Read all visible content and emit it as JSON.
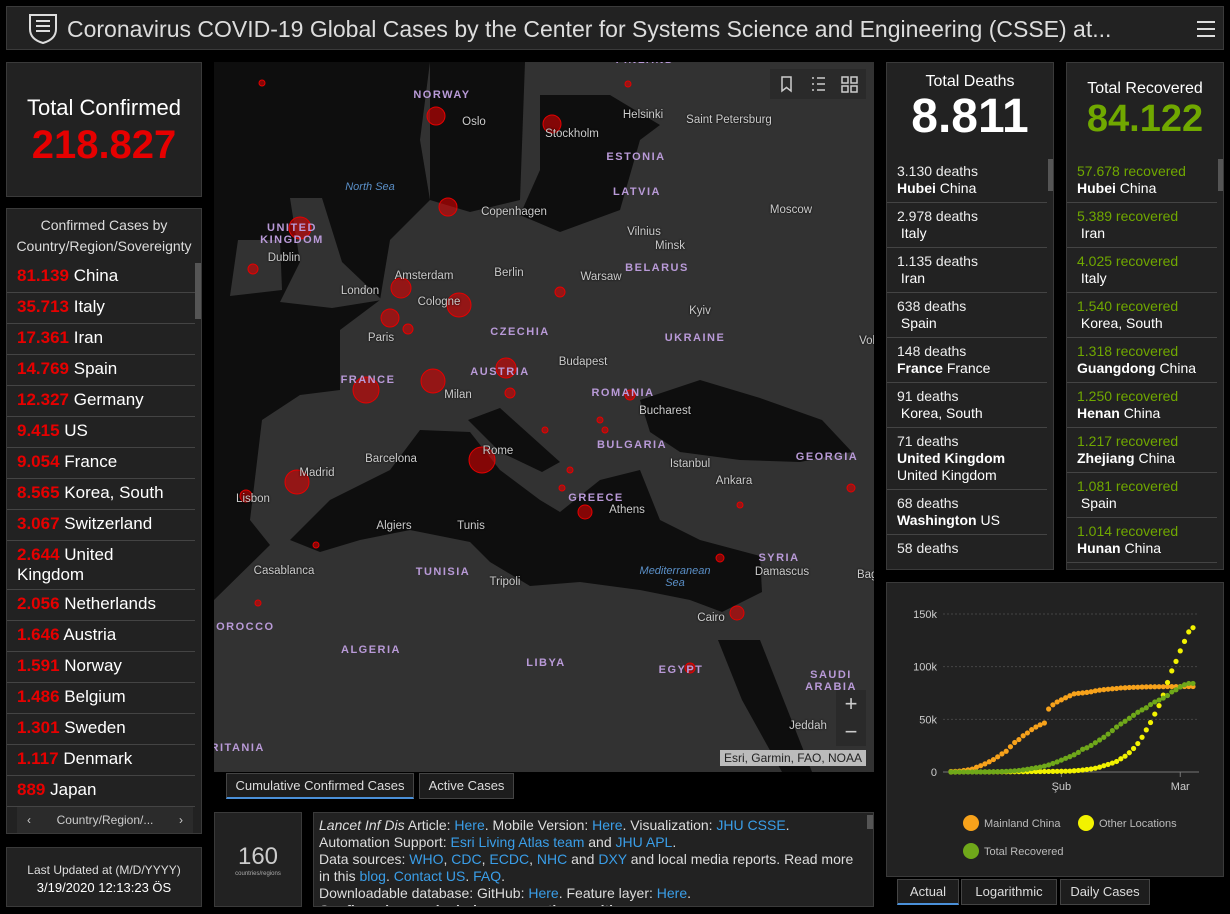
{
  "header": {
    "title": "Coronavirus COVID-19 Global Cases by the Center for Systems Science and Engineering (CSSE) at..."
  },
  "confirmed": {
    "title": "Total Confirmed",
    "value": "218.827"
  },
  "country_list": {
    "title": "Confirmed Cases by Country/Region/Sovereignty",
    "items": [
      {
        "value": "81.139",
        "name": "China"
      },
      {
        "value": "35.713",
        "name": "Italy"
      },
      {
        "value": "17.361",
        "name": "Iran"
      },
      {
        "value": "14.769",
        "name": "Spain"
      },
      {
        "value": "12.327",
        "name": "Germany"
      },
      {
        "value": "9.415",
        "name": "US"
      },
      {
        "value": "9.054",
        "name": "France"
      },
      {
        "value": "8.565",
        "name": "Korea, South"
      },
      {
        "value": "3.067",
        "name": "Switzerland"
      },
      {
        "value": "2.644",
        "name": "United Kingdom"
      },
      {
        "value": "2.056",
        "name": "Netherlands"
      },
      {
        "value": "1.646",
        "name": "Austria"
      },
      {
        "value": "1.591",
        "name": "Norway"
      },
      {
        "value": "1.486",
        "name": "Belgium"
      },
      {
        "value": "1.301",
        "name": "Sweden"
      },
      {
        "value": "1.117",
        "name": "Denmark"
      },
      {
        "value": "889",
        "name": "Japan"
      }
    ],
    "nav": "Country/Region/..."
  },
  "last_updated": {
    "label": "Last Updated at (M/D/YYYY)",
    "value": "3/19/2020 12:13:23 ÖS"
  },
  "map": {
    "labels": [
      "FINLAND",
      "NORWAY",
      "ESTONIA",
      "LATVIA",
      "UNITED KINGDOM",
      "BELARUS",
      "CZECHIA",
      "UKRAINE",
      "FRANCE",
      "AUSTRIA",
      "ROMANIA",
      "BULGARIA",
      "GEORGIA",
      "GREECE",
      "SYRIA",
      "TUNISIA",
      "MOROCCO",
      "ALGERIA",
      "LIBYA",
      "EGYPT",
      "SAUDI ARABIA",
      "MAURITANIA"
    ],
    "cities": [
      "Oslo",
      "Stockholm",
      "Helsinki",
      "Saint Petersburg",
      "Copenhagen",
      "Moscow",
      "Dublin",
      "Vilnius",
      "Minsk",
      "Amsterdam",
      "Berlin",
      "Warsaw",
      "London",
      "Cologne",
      "Kyiv",
      "Paris",
      "Volgograd",
      "Budapest",
      "Milan",
      "Bucharest",
      "Barcelona",
      "Rome",
      "Istanbul",
      "Madrid",
      "Ankara",
      "Lisbon",
      "Athens",
      "Algiers",
      "Tunis",
      "Damascus",
      "Baghdad",
      "Casablanca",
      "Tripoli",
      "Cairo",
      "Jeddah"
    ],
    "seas": [
      "North Sea",
      "Mediterranean Sea"
    ],
    "attribution": "Esri, Garmin, FAO, NOAA",
    "zoom_in": "+",
    "zoom_out": "−",
    "tabs": [
      "Cumulative Confirmed Cases",
      "Active Cases"
    ]
  },
  "count": {
    "value": "160",
    "label": "countries/regions"
  },
  "info": {
    "lines": [
      [
        {
          "text": "Lancet Inf Dis",
          "style": "italic"
        },
        {
          "text": " Article: "
        },
        {
          "text": "Here",
          "style": "link"
        },
        {
          "text": ". Mobile Version: "
        },
        {
          "text": "Here",
          "style": "link"
        },
        {
          "text": ". Visualization: "
        },
        {
          "text": "JHU CSSE",
          "style": "link"
        },
        {
          "text": "."
        }
      ],
      [
        {
          "text": "Automation Support: "
        },
        {
          "text": "Esri Living Atlas team",
          "style": "link"
        },
        {
          "text": " and "
        },
        {
          "text": "JHU APL",
          "style": "link"
        },
        {
          "text": "."
        }
      ],
      [
        {
          "text": "Data sources: "
        },
        {
          "text": "WHO",
          "style": "link"
        },
        {
          "text": ", "
        },
        {
          "text": "CDC",
          "style": "link"
        },
        {
          "text": ", "
        },
        {
          "text": "ECDC",
          "style": "link"
        },
        {
          "text": ", "
        },
        {
          "text": "NHC",
          "style": "link"
        },
        {
          "text": " and "
        },
        {
          "text": "DXY",
          "style": "link"
        },
        {
          "text": " and local media reports. Read more in this "
        },
        {
          "text": "blog",
          "style": "link"
        },
        {
          "text": ". "
        },
        {
          "text": "Contact US",
          "style": "link"
        },
        {
          "text": ". "
        },
        {
          "text": "FAQ",
          "style": "link"
        },
        {
          "text": "."
        }
      ],
      [
        {
          "text": "Downloadable database: GitHub: "
        },
        {
          "text": "Here",
          "style": "link"
        },
        {
          "text": ". Feature layer: "
        },
        {
          "text": "Here",
          "style": "link"
        },
        {
          "text": "."
        }
      ],
      [
        {
          "text": "Confirmed cases include presumptive positive cases",
          "style": "bold"
        }
      ]
    ]
  },
  "deaths": {
    "title": "Total Deaths",
    "value": "8.811",
    "items": [
      {
        "count": "3.130 deaths",
        "place": "Hubei",
        "region": "China"
      },
      {
        "count": "2.978 deaths",
        "region": "Italy"
      },
      {
        "count": "1.135 deaths",
        "region": "Iran"
      },
      {
        "count": "638 deaths",
        "region": "Spain"
      },
      {
        "count": "148 deaths",
        "place": "France",
        "region": "France"
      },
      {
        "count": "91 deaths",
        "region": "Korea, South"
      },
      {
        "count": "71 deaths",
        "place": "United Kingdom",
        "region": "United Kingdom"
      },
      {
        "count": "68 deaths",
        "place": "Washington",
        "region": "US"
      },
      {
        "count": "58 deaths"
      }
    ]
  },
  "recovered": {
    "title": "Total Recovered",
    "value": "84.122",
    "items": [
      {
        "count": "57.678 recovered",
        "place": "Hubei",
        "region": "China"
      },
      {
        "count": "5.389 recovered",
        "region": "Iran"
      },
      {
        "count": "4.025 recovered",
        "region": "Italy"
      },
      {
        "count": "1.540 recovered",
        "region": "Korea, South"
      },
      {
        "count": "1.318 recovered",
        "place": "Guangdong",
        "region": "China"
      },
      {
        "count": "1.250 recovered",
        "place": "Henan",
        "region": "China"
      },
      {
        "count": "1.217 recovered",
        "place": "Zhejiang",
        "region": "China"
      },
      {
        "count": "1.081 recovered",
        "region": "Spain"
      },
      {
        "count": "1.014 recovered",
        "place": "Hunan",
        "region": "China"
      }
    ]
  },
  "chart": {
    "type": "line",
    "categories": [
      null,
      null,
      null,
      null,
      null,
      null,
      null,
      null,
      null,
      null,
      null,
      null,
      null,
      null,
      null,
      null,
      null,
      null,
      null,
      null,
      null,
      null,
      null,
      null,
      null,
      null,
      "Şub",
      null,
      null,
      null,
      null,
      null,
      null,
      null,
      null,
      null,
      null,
      null,
      null,
      null,
      null,
      null,
      null,
      null,
      null,
      null,
      null,
      null,
      null,
      null,
      null,
      null,
      null,
      null,
      "Mar",
      null,
      null,
      null
    ],
    "ylim": [
      0,
      150000
    ],
    "yticks": [
      0,
      {
        "value": 50000,
        "label": "50k"
      },
      {
        "value": 100000,
        "label": "100k"
      },
      {
        "value": 150000,
        "label": "150k"
      }
    ],
    "grid": true,
    "series": [
      {
        "name": "Mainland China",
        "color": "#f7a21b",
        "values": [
          500,
          600,
          900,
          1400,
          2100,
          2800,
          4500,
          6000,
          7700,
          9700,
          11800,
          14400,
          17200,
          19700,
          24000,
          28000,
          30800,
          34400,
          37100,
          40200,
          42700,
          44800,
          46500,
          59800,
          63800,
          66500,
          68500,
          70500,
          72400,
          74200,
          74700,
          75100,
          75600,
          76200,
          77100,
          77700,
          78200,
          78600,
          79000,
          79300,
          79800,
          80000,
          80200,
          80400,
          80500,
          80700,
          80800,
          80900,
          80900,
          81000,
          81000,
          81100,
          81100,
          81100,
          81100,
          81100,
          81100,
          81100
        ]
      },
      {
        "name": "Other Locations",
        "color": "#f2f200",
        "values": [
          10,
          20,
          30,
          40,
          50,
          60,
          70,
          80,
          100,
          130,
          150,
          160,
          190,
          210,
          250,
          270,
          310,
          330,
          360,
          410,
          440,
          460,
          500,
          530,
          600,
          650,
          690,
          790,
          900,
          1200,
          1500,
          1900,
          2400,
          2900,
          3600,
          4600,
          6000,
          7200,
          8500,
          10000,
          12600,
          15000,
          18300,
          22300,
          27000,
          33000,
          40000,
          47000,
          55000,
          63000,
          73000,
          85000,
          96000,
          105000,
          115000,
          124000,
          133000,
          137000
        ]
      },
      {
        "name": "Total Recovered",
        "color": "#6fa81a",
        "values": [
          30,
          30,
          40,
          50,
          60,
          60,
          100,
          120,
          130,
          200,
          250,
          330,
          470,
          630,
          880,
          1150,
          1500,
          2000,
          2600,
          3300,
          4000,
          4700,
          5600,
          6700,
          8100,
          9600,
          11300,
          13000,
          14600,
          16400,
          18600,
          21600,
          23000,
          25200,
          27800,
          30400,
          33000,
          36000,
          39300,
          42700,
          45600,
          48200,
          51000,
          53900,
          56700,
          59000,
          61000,
          64000,
          66500,
          68300,
          70200,
          72600,
          76000,
          78100,
          80800,
          82800,
          84100,
          84100
        ]
      }
    ],
    "tabs": [
      "Actual",
      "Logarithmic",
      "Daily Cases"
    ]
  }
}
